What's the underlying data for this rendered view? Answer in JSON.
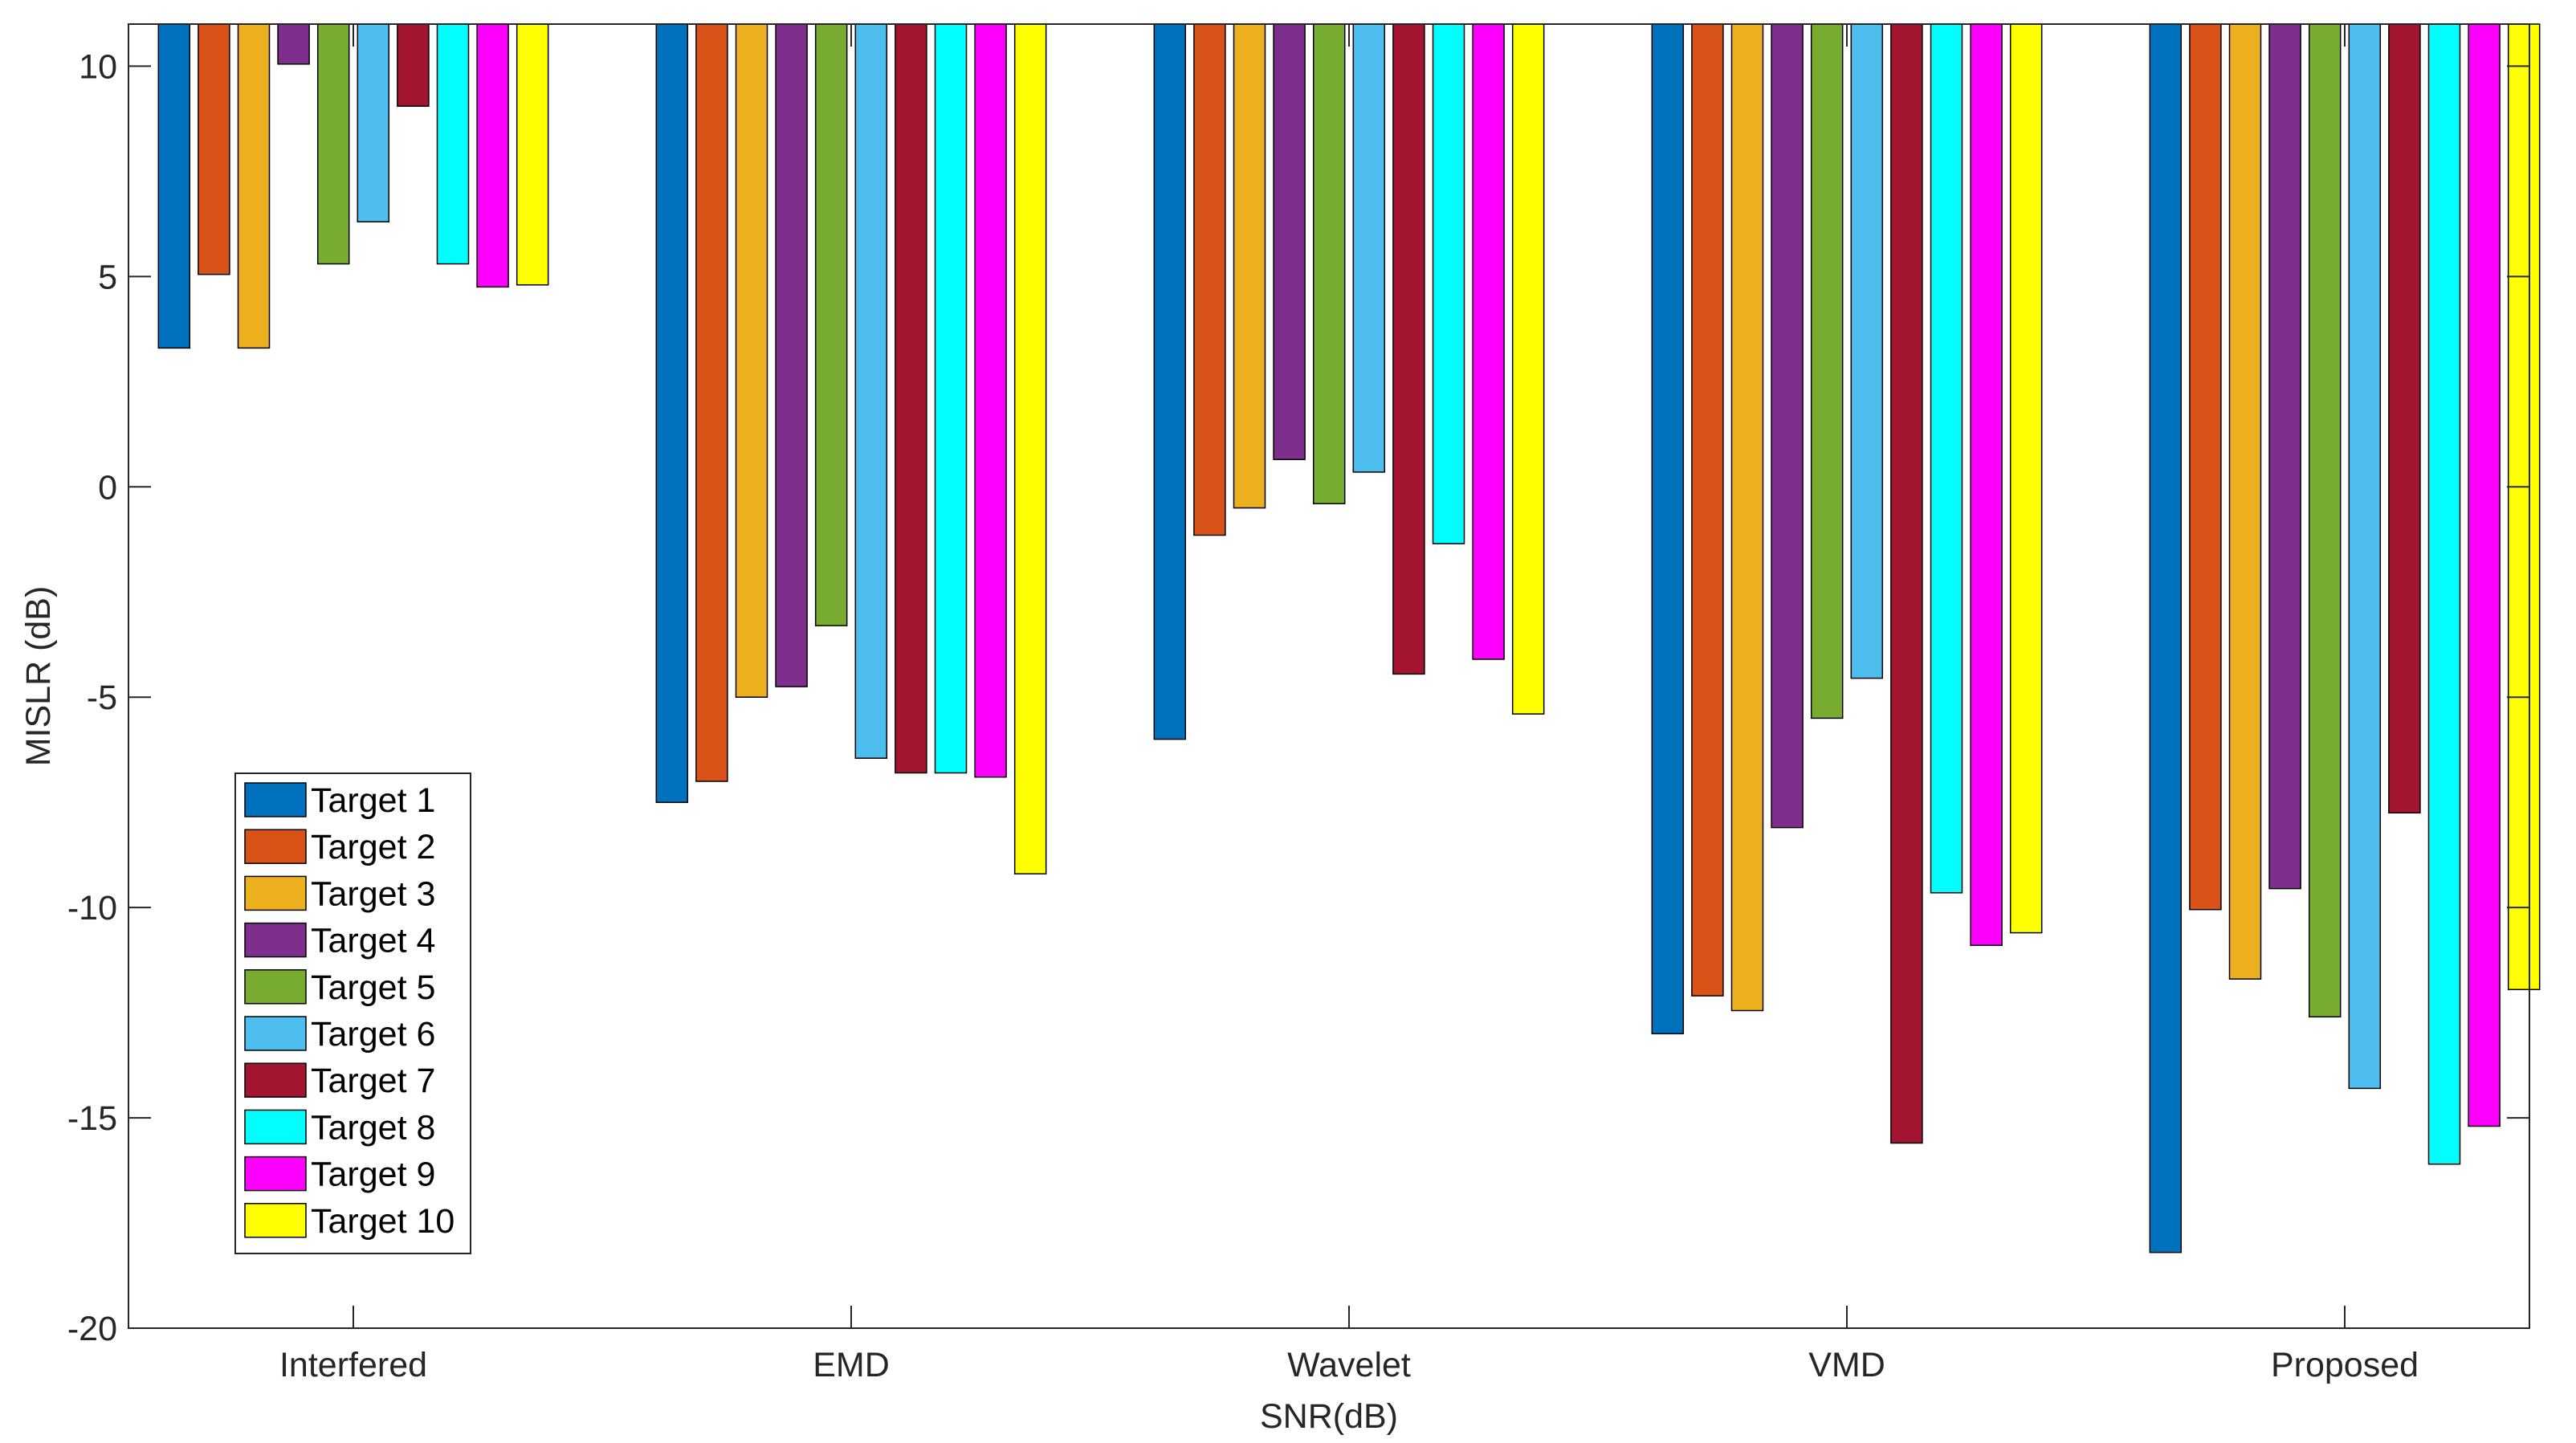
{
  "chart_data": {
    "type": "bar",
    "title": "",
    "xlabel": "SNR(dB)",
    "ylabel": "MISLR (dB)",
    "ylim": [
      -20,
      11
    ],
    "yticks": [
      10,
      5,
      0,
      -5,
      -10,
      -15,
      -20
    ],
    "ytick_labels": [
      "10",
      "5",
      "0",
      "-5",
      "-10",
      "-15",
      "-20"
    ],
    "categories": [
      "Interfered",
      "EMD",
      "Wavelet",
      "VMD",
      "Proposed"
    ],
    "legend_position": "bottom-left",
    "grid": false,
    "series": [
      {
        "name": "Target 1",
        "color": "#0072BD",
        "values": [
          3.3,
          -7.5,
          -6.0,
          -13.0,
          -18.2
        ]
      },
      {
        "name": "Target 2",
        "color": "#D95319",
        "values": [
          5.05,
          -7.0,
          -1.15,
          -12.1,
          -10.05
        ]
      },
      {
        "name": "Target 3",
        "color": "#EDB120",
        "values": [
          3.3,
          -5.0,
          -0.5,
          -12.45,
          -11.7
        ]
      },
      {
        "name": "Target 4",
        "color": "#7E2F8E",
        "values": [
          10.05,
          -4.75,
          0.65,
          -8.1,
          -9.55
        ]
      },
      {
        "name": "Target 5",
        "color": "#77AC30",
        "values": [
          5.3,
          -3.3,
          -0.4,
          -5.5,
          -12.6
        ]
      },
      {
        "name": "Target 6",
        "color": "#4DBEEE",
        "values": [
          6.3,
          -6.45,
          0.35,
          -4.55,
          -14.3
        ]
      },
      {
        "name": "Target 7",
        "color": "#A2142F",
        "values": [
          9.05,
          -6.8,
          -4.45,
          -15.6,
          -7.75
        ]
      },
      {
        "name": "Target 8",
        "color": "#00FFFF",
        "values": [
          5.3,
          -6.8,
          -1.35,
          -9.65,
          -16.1
        ]
      },
      {
        "name": "Target 9",
        "color": "#FF00FF",
        "values": [
          4.75,
          -6.9,
          -4.1,
          -10.9,
          -15.2
        ]
      },
      {
        "name": "Target 10",
        "color": "#FFFF00",
        "values": [
          4.8,
          -9.2,
          -5.4,
          -10.6,
          -11.95
        ]
      }
    ]
  }
}
